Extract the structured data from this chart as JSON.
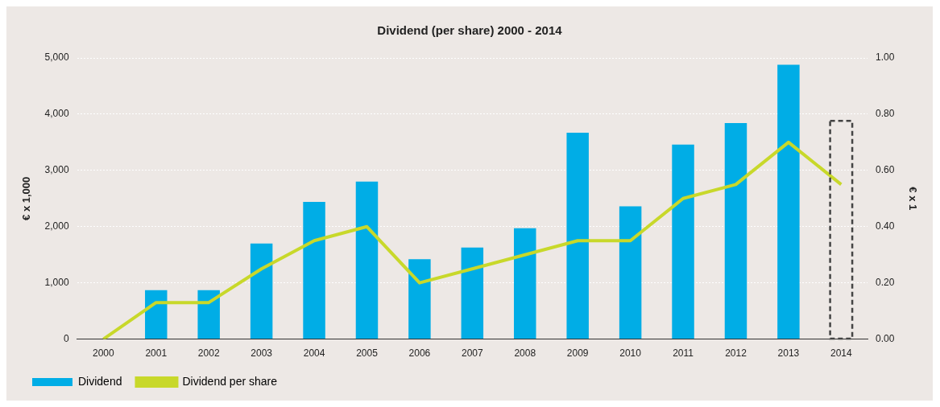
{
  "chart_data": {
    "type": "bar",
    "title": "Dividend (per share) 2000 - 2014",
    "categories": [
      "2000",
      "2001",
      "2002",
      "2003",
      "2004",
      "2005",
      "2006",
      "2007",
      "2008",
      "2009",
      "2010",
      "2011",
      "2012",
      "2013",
      "2014"
    ],
    "series": [
      {
        "name": "Dividend",
        "color": "#00ade6",
        "values": [
          null,
          870,
          870,
          1700,
          2440,
          2800,
          1420,
          1630,
          1970,
          3670,
          2360,
          3460,
          3840,
          4880,
          null
        ]
      },
      {
        "color": "#444444",
        "line_style": "dashed",
        "values": [
          null,
          null,
          null,
          null,
          null,
          null,
          null,
          null,
          null,
          null,
          null,
          null,
          null,
          null,
          3880
        ]
      },
      {
        "name": "Dividend per share",
        "type": "line",
        "axis": "y2",
        "color": "#c8d82a",
        "marker": "none",
        "values": [
          0,
          0.13,
          0.13,
          0.25,
          0.35,
          0.4,
          0.2,
          0.25,
          0.3,
          0.35,
          0.35,
          0.5,
          0.55,
          0.7,
          0.55
        ]
      }
    ],
    "stacked": true,
    "ylabel": "€ x 1,000",
    "y2label": "€ x 1",
    "ylim": [
      0,
      5000
    ],
    "yticks": [
      {
        "value": 0,
        "label": "0"
      },
      {
        "value": 1000,
        "label": "1,000"
      },
      {
        "value": 2000,
        "label": "2,000"
      },
      {
        "value": 3000,
        "label": "3,000"
      },
      {
        "value": 4000,
        "label": "4,000"
      },
      {
        "value": 5000,
        "label": "5,000"
      }
    ],
    "y2lim": [
      0,
      1
    ],
    "y2ticks": [
      {
        "value": 0,
        "label": "0.00"
      },
      {
        "value": 0.2,
        "label": "0.20"
      },
      {
        "value": 0.4,
        "label": "0.40"
      },
      {
        "value": 0.6,
        "label": "0.60"
      },
      {
        "value": 0.8,
        "label": "0.80"
      },
      {
        "value": 1,
        "label": "1.00"
      }
    ],
    "grid": "y",
    "legend": "bottom left"
  }
}
